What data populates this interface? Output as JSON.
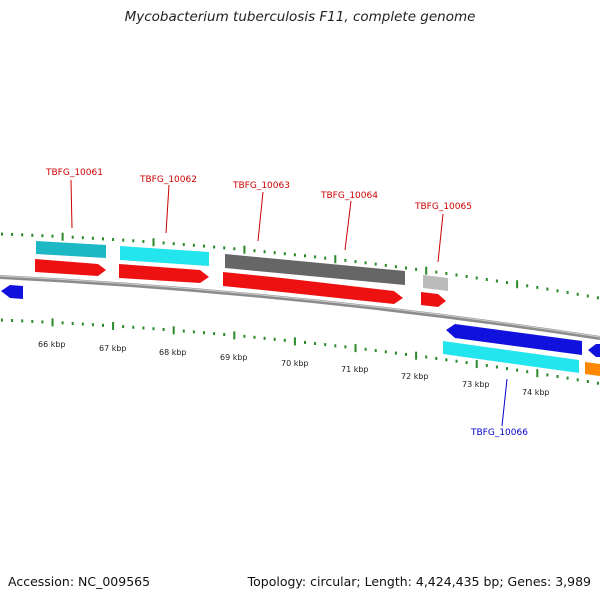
{
  "title": "Mycobacterium tuberculosis F11, complete genome",
  "footer": {
    "accession": "Accession: NC_009565",
    "summary": "Topology: circular; Length: 4,424,435 bp; Genes: 3,989"
  },
  "colors": {
    "background": "#ffffff",
    "backbone": "#8c8c8c",
    "tick": "#2a8a2a",
    "forward_label": "#cc0000",
    "reverse_label": "#0000cc",
    "cds_red": "#ee1111",
    "gene_cyan": "#22e5ee",
    "gene_teal": "#1cb8c4",
    "gene_gray": "#666666",
    "gene_lightgray": "#bbbbbb",
    "gene_blue": "#1111dd",
    "gene_orange": "#ff8800"
  },
  "kbp_labels": [
    "66 kbp",
    "67 kbp",
    "68 kbp",
    "69 kbp",
    "70 kbp",
    "71 kbp",
    "72 kbp",
    "73 kbp",
    "74 kbp"
  ],
  "gene_labels": [
    {
      "id": "TBFG_10061",
      "strand": "forward"
    },
    {
      "id": "TBFG_10062",
      "strand": "forward"
    },
    {
      "id": "TBFG_10063",
      "strand": "forward"
    },
    {
      "id": "TBFG_10064",
      "strand": "forward"
    },
    {
      "id": "TBFG_10065",
      "strand": "forward"
    },
    {
      "id": "TBFG_10066",
      "strand": "reverse"
    }
  ]
}
